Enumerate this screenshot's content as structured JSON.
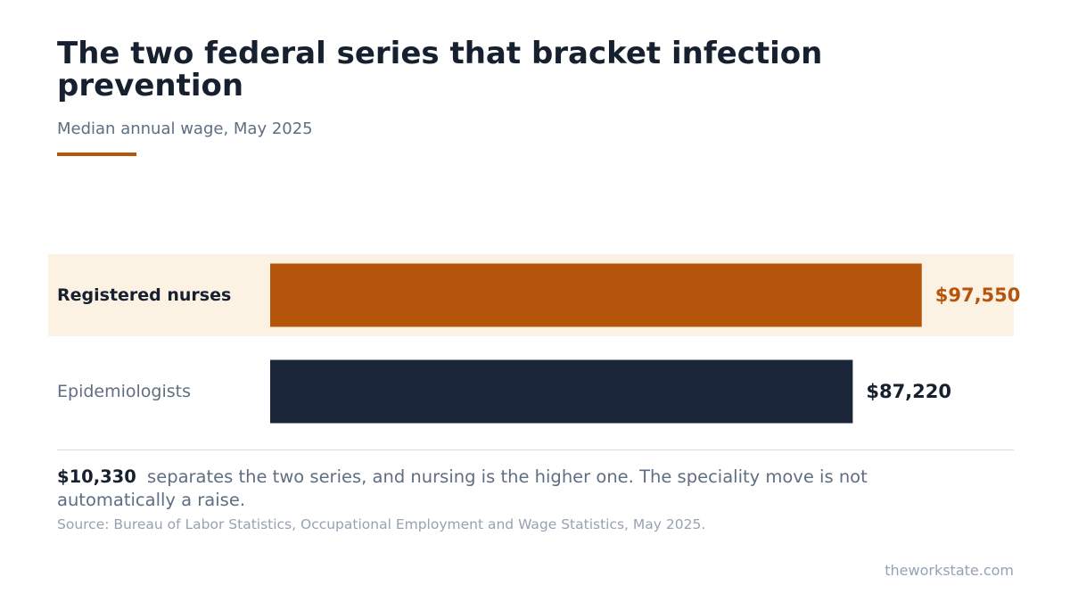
{
  "header": {
    "title": "The two federal series that bracket infection prevention",
    "subtitle": "Median annual wage, May 2025"
  },
  "chart_data": {
    "type": "bar",
    "orientation": "horizontal",
    "title": "The two federal series that bracket infection prevention",
    "subtitle": "Median annual wage, May 2025",
    "categories": [
      "Registered nurses",
      "Epidemiologists"
    ],
    "values": [
      97550,
      87220
    ],
    "value_labels": [
      "$97,550",
      "$87,220"
    ],
    "highlighted_category": "Registered nurses",
    "xlim": [
      0,
      110000
    ],
    "grid": false,
    "legend": "none"
  },
  "note": {
    "value": "$10,330",
    "text": "separates the two series, and nursing is the higher one. The speciality move is not automatically a raise."
  },
  "source": "Source: Bureau of Labor Statistics, Occupational Employment and Wage Statistics, May 2025.",
  "brand": "theworkstate.com",
  "colors": {
    "accent": "#b5550c",
    "highlight_band": "#fcf2e3",
    "dark_bar": "#1c263a",
    "title_text": "#16202f",
    "muted_text": "#5f6e82",
    "faint_text": "#97a2b3"
  }
}
